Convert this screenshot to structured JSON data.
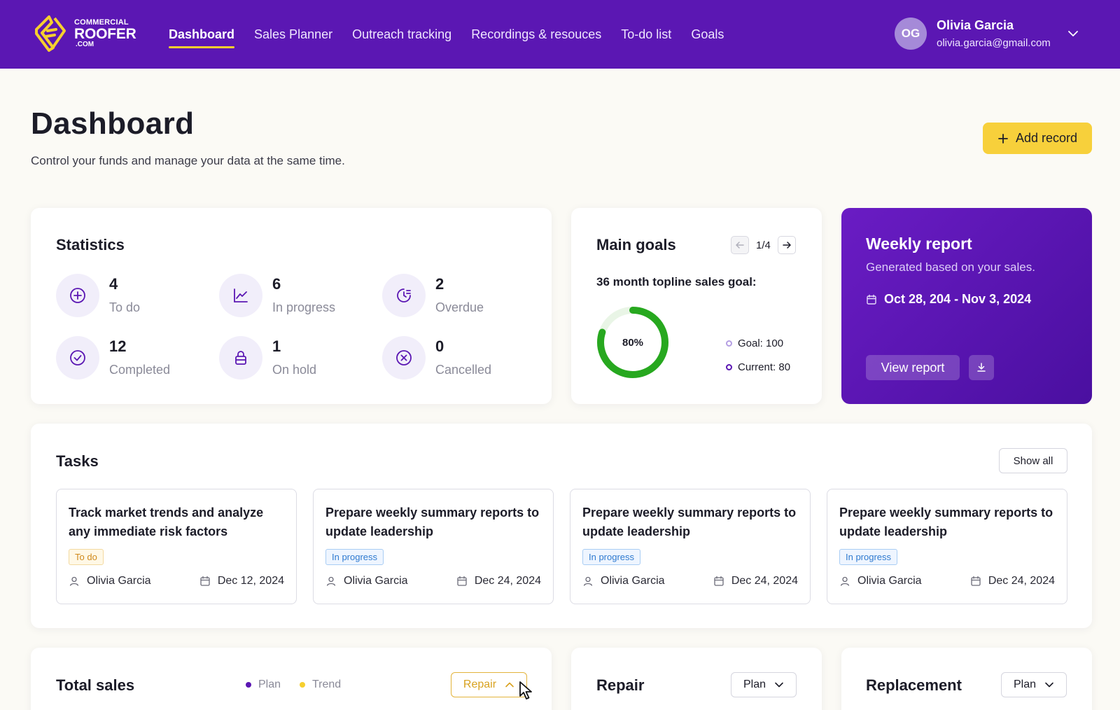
{
  "brand": {
    "line1": "COMMERCIAL",
    "line2": "ROOFER",
    "line3": ".COM"
  },
  "nav": [
    {
      "label": "Dashboard",
      "active": true
    },
    {
      "label": "Sales Planner"
    },
    {
      "label": "Outreach tracking"
    },
    {
      "label": "Recordings & resouces"
    },
    {
      "label": "To-do list"
    },
    {
      "label": "Goals"
    }
  ],
  "user": {
    "initials": "OG",
    "name": "Olivia Garcia",
    "email": "olivia.garcia@gmail.com"
  },
  "page": {
    "title": "Dashboard",
    "subtitle": "Control your funds and manage your data at the same time.",
    "add_label": "Add record"
  },
  "statistics": {
    "title": "Statistics",
    "items": [
      {
        "value": "4",
        "label": "To do",
        "icon": "plus-circle-icon"
      },
      {
        "value": "6",
        "label": "In progress",
        "icon": "line-chart-icon"
      },
      {
        "value": "2",
        "label": "Overdue",
        "icon": "clock-icon"
      },
      {
        "value": "12",
        "label": "Completed",
        "icon": "check-circle-icon"
      },
      {
        "value": "1",
        "label": "On hold",
        "icon": "lock-icon"
      },
      {
        "value": "0",
        "label": "Cancelled",
        "icon": "x-circle-icon"
      }
    ]
  },
  "goals": {
    "title": "Main goals",
    "pager": "1/4",
    "subtitle": "36 month topline sales goal:",
    "percent_label": "80%",
    "progress": 0.8,
    "goal_text": "Goal: 100",
    "current_text": "Current: 80",
    "ring_color": "#27a81f"
  },
  "weekly": {
    "title": "Weekly report",
    "subtitle": "Generated based on your sales.",
    "date_range": "Oct 28, 204 - Nov 3, 2024",
    "view_label": "View report"
  },
  "tasks": {
    "title": "Tasks",
    "show_all": "Show all",
    "items": [
      {
        "title": "Track market trends and analyze any immediate risk factors",
        "status": "To do",
        "assignee": "Olivia Garcia",
        "date": "Dec 12, 2024"
      },
      {
        "title": "Prepare weekly summary reports to update leadership",
        "status": "In progress",
        "assignee": "Olivia Garcia",
        "date": "Dec 24, 2024"
      },
      {
        "title": "Prepare weekly summary reports to update leadership",
        "status": "In progress",
        "assignee": "Olivia Garcia",
        "date": "Dec 24, 2024"
      },
      {
        "title": "Prepare weekly summary reports to update leadership",
        "status": "In progress",
        "assignee": "Olivia Garcia",
        "date": "Dec 24, 2024"
      }
    ]
  },
  "total_sales": {
    "title": "Total sales",
    "legend": [
      {
        "label": "Plan",
        "color": "#5b17b3"
      },
      {
        "label": "Trend",
        "color": "#f6cf2f"
      }
    ],
    "dropdown": "Repair"
  },
  "repair": {
    "title": "Repair",
    "dropdown": "Plan"
  },
  "replacement": {
    "title": "Replacement",
    "dropdown": "Plan"
  },
  "colors": {
    "brand": "#5b17b3",
    "accent": "#f7d03b"
  }
}
